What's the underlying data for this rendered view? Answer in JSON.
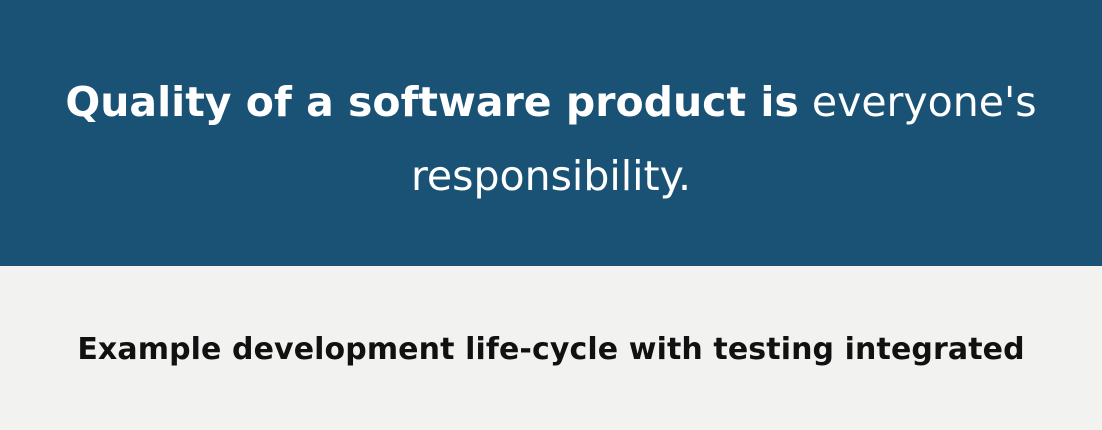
{
  "banner": {
    "quote_strong": "Quality of a software product is",
    "quote_rest": "everyone's responsibility.",
    "background_color": "#1a5276"
  },
  "section": {
    "title": "Example development life-cycle with testing integrated",
    "background_color": "#f2f2f0"
  }
}
